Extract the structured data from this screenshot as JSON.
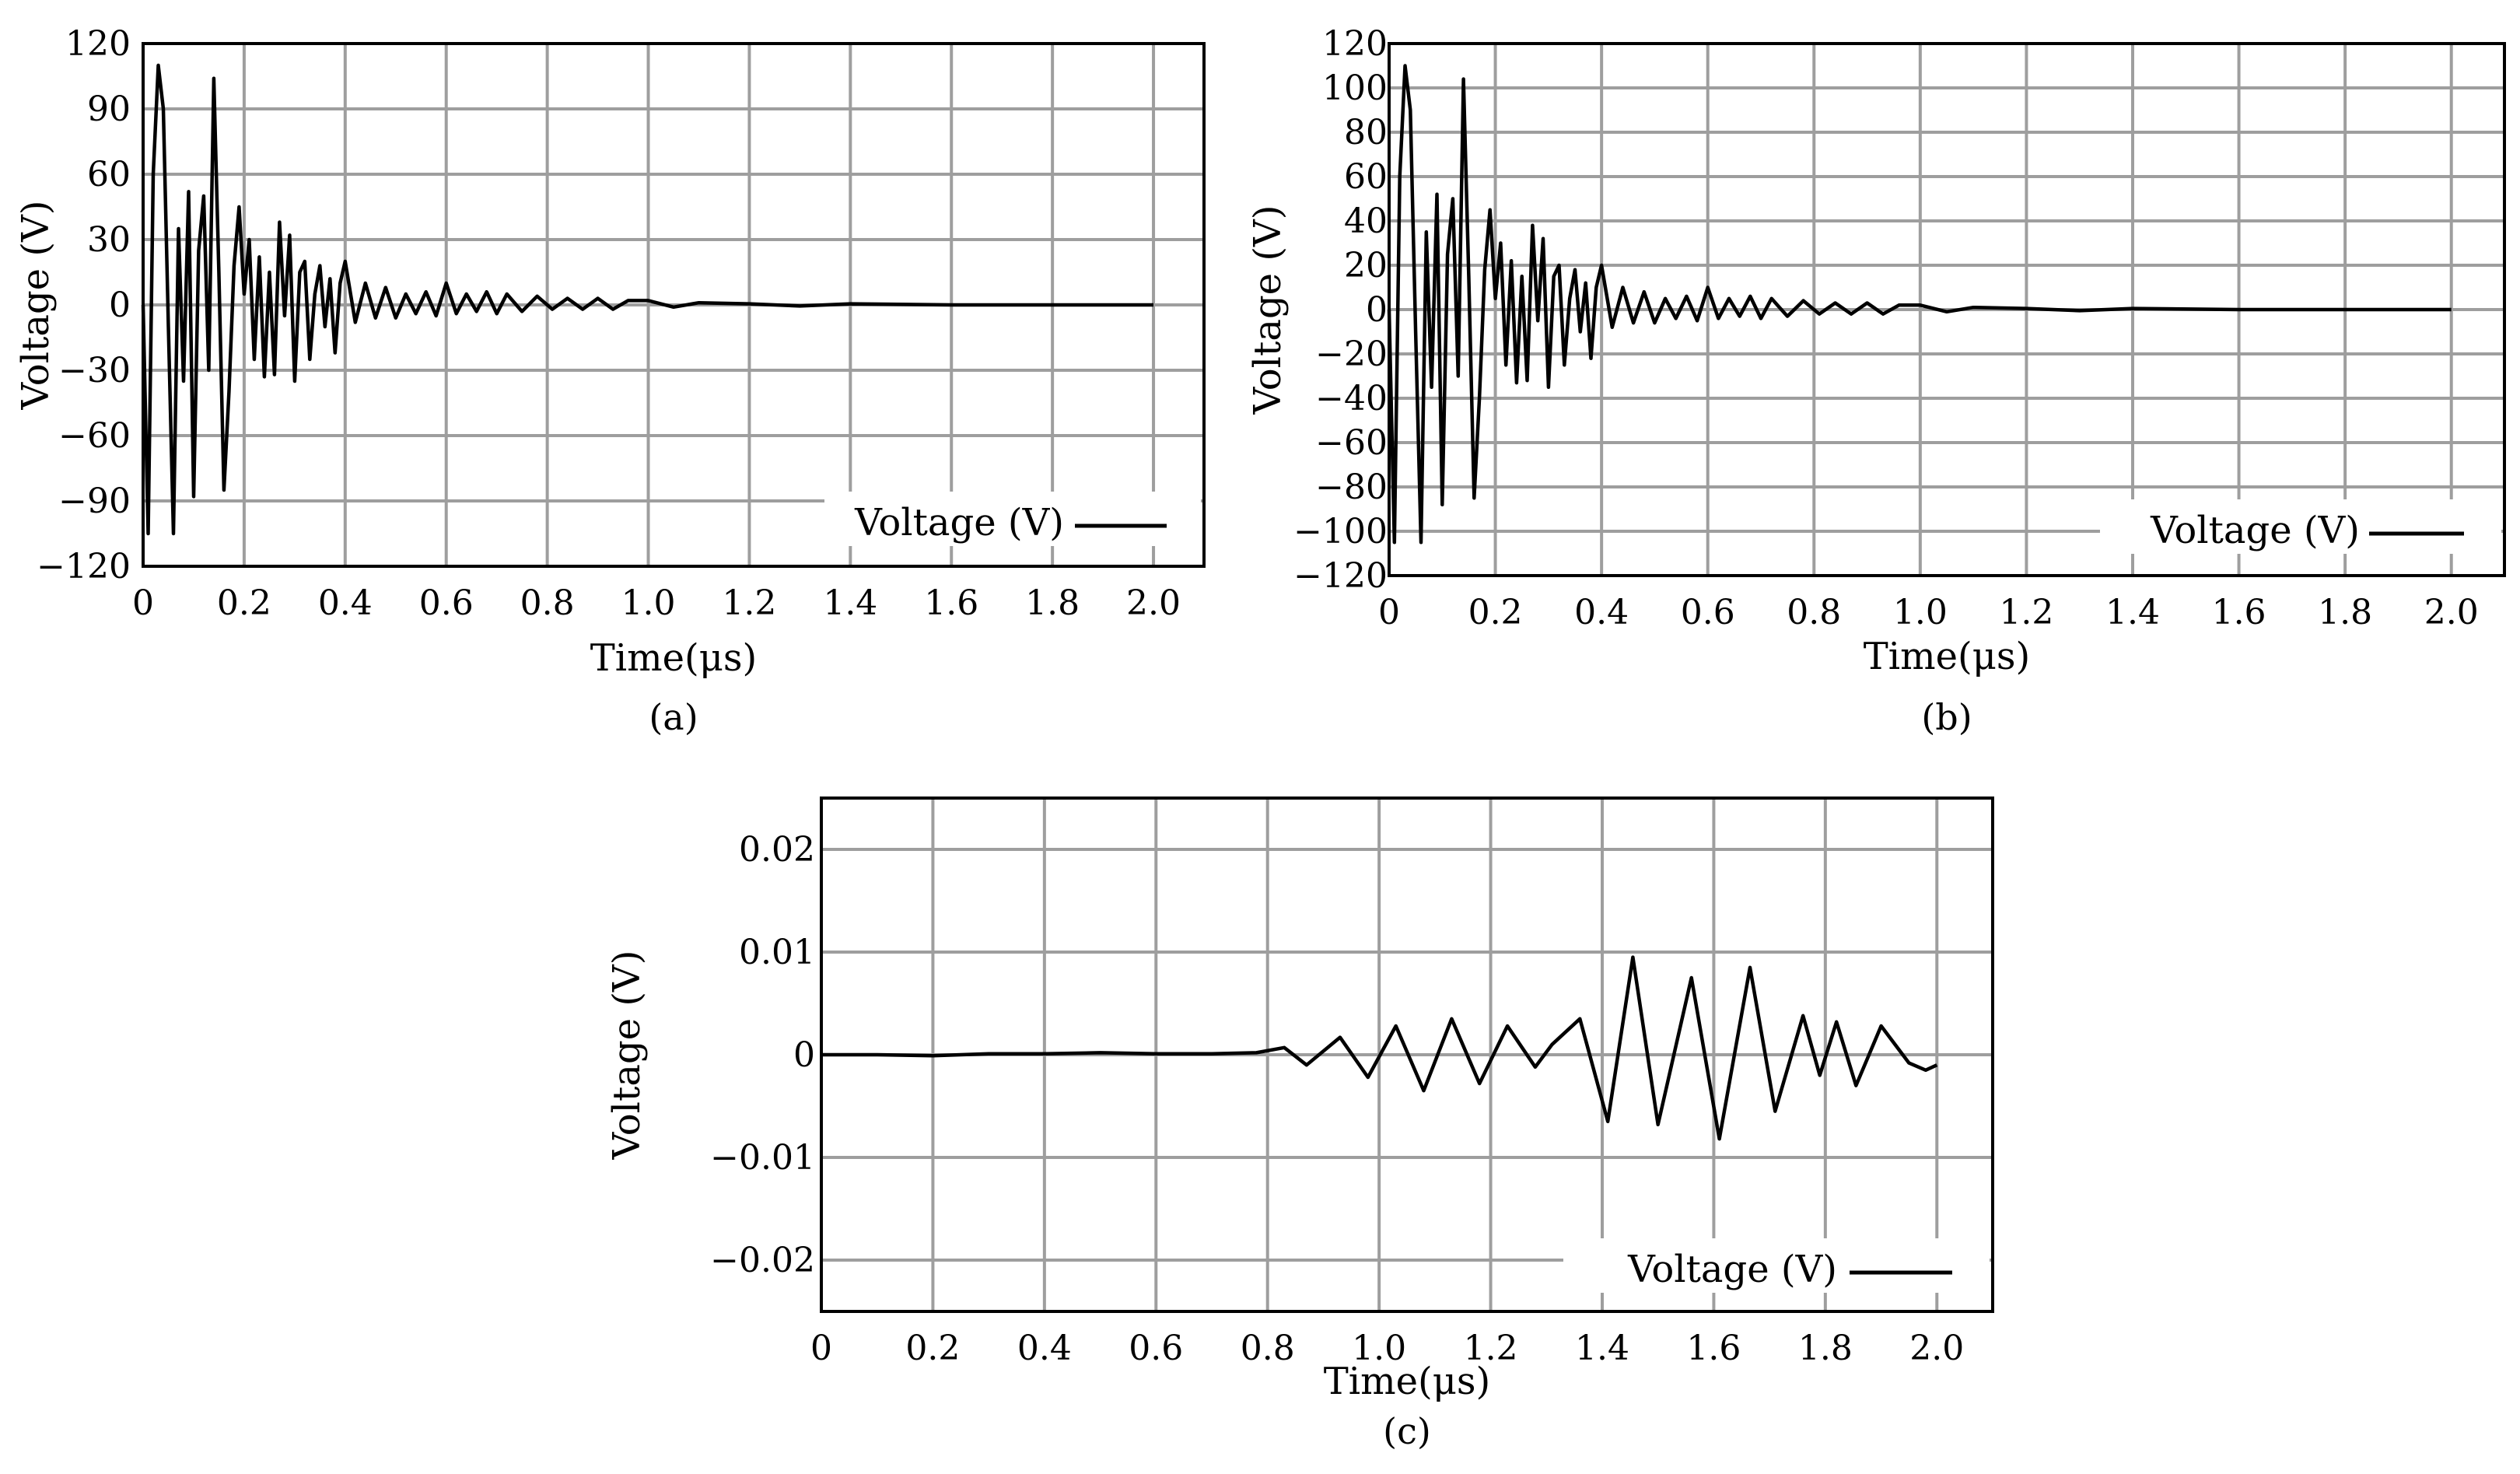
{
  "chart_data": [
    {
      "type": "line",
      "caption": "(a)",
      "xlabel": "Time(μs)",
      "ylabel": "Voltage (V)",
      "xlim": [
        0,
        2.1
      ],
      "ylim": [
        -120,
        120
      ],
      "xticks": [
        "0",
        "0.2",
        "0.4",
        "0.6",
        "0.8",
        "1.0",
        "1.2",
        "1.4",
        "1.6",
        "1.8",
        "2.0"
      ],
      "yticks": [
        "120",
        "90",
        "60",
        "30",
        "0",
        "−30",
        "−60",
        "−90",
        "−120"
      ],
      "grid": true,
      "legend": "lower right",
      "series": [
        {
          "name": "Voltage (V)",
          "x": [
            0,
            0.01,
            0.02,
            0.03,
            0.04,
            0.05,
            0.06,
            0.07,
            0.08,
            0.09,
            0.1,
            0.11,
            0.12,
            0.13,
            0.14,
            0.15,
            0.16,
            0.17,
            0.18,
            0.19,
            0.2,
            0.21,
            0.22,
            0.23,
            0.24,
            0.25,
            0.26,
            0.27,
            0.28,
            0.29,
            0.3,
            0.31,
            0.32,
            0.33,
            0.34,
            0.35,
            0.36,
            0.37,
            0.38,
            0.39,
            0.4,
            0.42,
            0.44,
            0.46,
            0.48,
            0.5,
            0.52,
            0.54,
            0.56,
            0.58,
            0.6,
            0.62,
            0.64,
            0.66,
            0.68,
            0.7,
            0.72,
            0.75,
            0.78,
            0.81,
            0.84,
            0.87,
            0.9,
            0.93,
            0.96,
            1.0,
            1.05,
            1.1,
            1.2,
            1.3,
            1.4,
            1.6,
            1.8,
            2.0
          ],
          "y": [
            0,
            -105,
            60,
            110,
            90,
            -10,
            -105,
            35,
            -35,
            52,
            -88,
            25,
            50,
            -30,
            104,
            15,
            -85,
            -40,
            18,
            45,
            5,
            30,
            -25,
            22,
            -33,
            15,
            -32,
            38,
            -5,
            32,
            -35,
            15,
            20,
            -25,
            5,
            18,
            -10,
            12,
            -22,
            10,
            20,
            -8,
            10,
            -6,
            8,
            -6,
            5,
            -4,
            6,
            -5,
            10,
            -4,
            5,
            -3,
            6,
            -4,
            5,
            -3,
            4,
            -2,
            3,
            -2,
            3,
            -2,
            2,
            2,
            -1,
            1,
            0.5,
            -0.5,
            0.5,
            0,
            0,
            0
          ]
        }
      ]
    },
    {
      "type": "line",
      "caption": "(b)",
      "xlabel": "Time(μs)",
      "ylabel": "Voltage (V)",
      "xlim": [
        0,
        2.1
      ],
      "ylim": [
        -120,
        120
      ],
      "xticks": [
        "0",
        "0.2",
        "0.4",
        "0.6",
        "0.8",
        "1.0",
        "1.2",
        "1.4",
        "1.6",
        "1.8",
        "2.0"
      ],
      "yticks": [
        "120",
        "100",
        "80",
        "60",
        "40",
        "20",
        "0",
        "−20",
        "−40",
        "−60",
        "−80",
        "−100",
        "−120"
      ],
      "grid": true,
      "legend": "lower right",
      "series": [
        {
          "name": "Voltage (V)",
          "x": [
            0,
            0.01,
            0.02,
            0.03,
            0.04,
            0.05,
            0.06,
            0.07,
            0.08,
            0.09,
            0.1,
            0.11,
            0.12,
            0.13,
            0.14,
            0.15,
            0.16,
            0.17,
            0.18,
            0.19,
            0.2,
            0.21,
            0.22,
            0.23,
            0.24,
            0.25,
            0.26,
            0.27,
            0.28,
            0.29,
            0.3,
            0.31,
            0.32,
            0.33,
            0.34,
            0.35,
            0.36,
            0.37,
            0.38,
            0.39,
            0.4,
            0.42,
            0.44,
            0.46,
            0.48,
            0.5,
            0.52,
            0.54,
            0.56,
            0.58,
            0.6,
            0.62,
            0.64,
            0.66,
            0.68,
            0.7,
            0.72,
            0.75,
            0.78,
            0.81,
            0.84,
            0.87,
            0.9,
            0.93,
            0.96,
            1.0,
            1.05,
            1.1,
            1.2,
            1.3,
            1.4,
            1.6,
            1.8,
            2.0
          ],
          "y": [
            0,
            -105,
            60,
            110,
            90,
            -10,
            -105,
            35,
            -35,
            52,
            -88,
            25,
            50,
            -30,
            104,
            15,
            -85,
            -40,
            18,
            45,
            5,
            30,
            -25,
            22,
            -33,
            15,
            -32,
            38,
            -5,
            32,
            -35,
            15,
            20,
            -25,
            5,
            18,
            -10,
            12,
            -22,
            10,
            20,
            -8,
            10,
            -6,
            8,
            -6,
            5,
            -4,
            6,
            -5,
            10,
            -4,
            5,
            -3,
            6,
            -4,
            5,
            -3,
            4,
            -2,
            3,
            -2,
            3,
            -2,
            2,
            2,
            -1,
            1,
            0.5,
            -0.5,
            0.5,
            0,
            0,
            0
          ]
        }
      ]
    },
    {
      "type": "line",
      "caption": "(c)",
      "xlabel": "Time(μs)",
      "ylabel": "Voltage (V)",
      "xlim": [
        0,
        2.1
      ],
      "ylim": [
        -0.025,
        0.025
      ],
      "xticks": [
        "0",
        "0.2",
        "0.4",
        "0.6",
        "0.8",
        "1.0",
        "1.2",
        "1.4",
        "1.6",
        "1.8",
        "2.0"
      ],
      "yticks": [
        "0.02",
        "0.01",
        "0",
        "−0.01",
        "−0.02"
      ],
      "grid": true,
      "legend": "lower right",
      "series": [
        {
          "name": "Voltage (V)",
          "x": [
            0,
            0.1,
            0.2,
            0.3,
            0.4,
            0.5,
            0.6,
            0.7,
            0.78,
            0.83,
            0.87,
            0.93,
            0.98,
            1.03,
            1.08,
            1.13,
            1.18,
            1.23,
            1.28,
            1.31,
            1.36,
            1.41,
            1.455,
            1.5,
            1.56,
            1.61,
            1.665,
            1.71,
            1.76,
            1.79,
            1.82,
            1.855,
            1.9,
            1.95,
            1.98,
            2.0
          ],
          "y": [
            0,
            0,
            -0.0001,
            0.0001,
            0.0001,
            0.0002,
            0.0001,
            0.0001,
            0.0002,
            0.0007,
            -0.001,
            0.0017,
            -0.0022,
            0.0028,
            -0.0035,
            0.0035,
            -0.0028,
            0.0028,
            -0.0012,
            0.001,
            0.0035,
            -0.0065,
            0.0095,
            -0.0068,
            0.0075,
            -0.0082,
            0.0085,
            -0.0055,
            0.0038,
            -0.002,
            0.0032,
            -0.003,
            0.0028,
            -0.0008,
            -0.0015,
            -0.001
          ]
        }
      ]
    }
  ]
}
